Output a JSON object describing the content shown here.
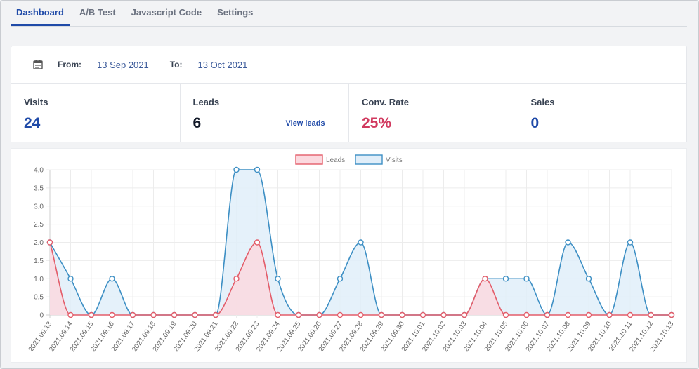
{
  "tabs": [
    {
      "label": "Dashboard",
      "active": true
    },
    {
      "label": "A/B Test",
      "active": false
    },
    {
      "label": "Javascript Code",
      "active": false
    },
    {
      "label": "Settings",
      "active": false
    }
  ],
  "date_range": {
    "icon": "calendar-icon",
    "from_label": "From:",
    "from_value": "13 Sep 2021",
    "to_label": "To:",
    "to_value": "13 Oct 2021"
  },
  "stats": {
    "visits": {
      "title": "Visits",
      "value": "24"
    },
    "leads": {
      "title": "Leads",
      "value": "6",
      "link": "View leads"
    },
    "conv_rate": {
      "title": "Conv. Rate",
      "value": "25%"
    },
    "sales": {
      "title": "Sales",
      "value": "0"
    }
  },
  "colors": {
    "leads_line": "#e35d6a",
    "leads_fill": "#fbd9df",
    "visits_line": "#3d8fc4",
    "visits_fill": "#e1eef9"
  },
  "chart_data": {
    "type": "area",
    "x": [
      "2021.09.13",
      "2021.09.14",
      "2021.09.15",
      "2021.09.16",
      "2021.09.17",
      "2021.09.18",
      "2021.09.19",
      "2021.09.20",
      "2021.09.21",
      "2021.09.22",
      "2021.09.23",
      "2021.09.24",
      "2021.09.25",
      "2021.09.26",
      "2021.09.27",
      "2021.09.28",
      "2021.09.29",
      "2021.09.30",
      "2021.10.01",
      "2021.10.02",
      "2021.10.03",
      "2021.10.04",
      "2021.10.05",
      "2021.10.06",
      "2021.10.07",
      "2021.10.08",
      "2021.10.09",
      "2021.10.10",
      "2021.10.11",
      "2021.10.12",
      "2021.10.13"
    ],
    "series": [
      {
        "name": "Leads",
        "values": [
          2,
          0,
          0,
          0,
          0,
          0,
          0,
          0,
          0,
          1,
          2,
          0,
          0,
          0,
          0,
          0,
          0,
          0,
          0,
          0,
          0,
          1,
          0,
          0,
          0,
          0,
          0,
          0,
          0,
          0,
          0
        ]
      },
      {
        "name": "Visits",
        "values": [
          2,
          1,
          0,
          1,
          0,
          0,
          0,
          0,
          0,
          4,
          4,
          1,
          0,
          0,
          1,
          2,
          0,
          0,
          0,
          0,
          0,
          1,
          1,
          1,
          0,
          2,
          1,
          0,
          2,
          0,
          0
        ]
      }
    ],
    "y_ticks": [
      "0",
      "0.5",
      "1.0",
      "1.5",
      "2.0",
      "2.5",
      "3.0",
      "3.5",
      "4.0"
    ],
    "ylim": [
      0,
      4
    ],
    "grid": true,
    "legend": "top-center"
  }
}
